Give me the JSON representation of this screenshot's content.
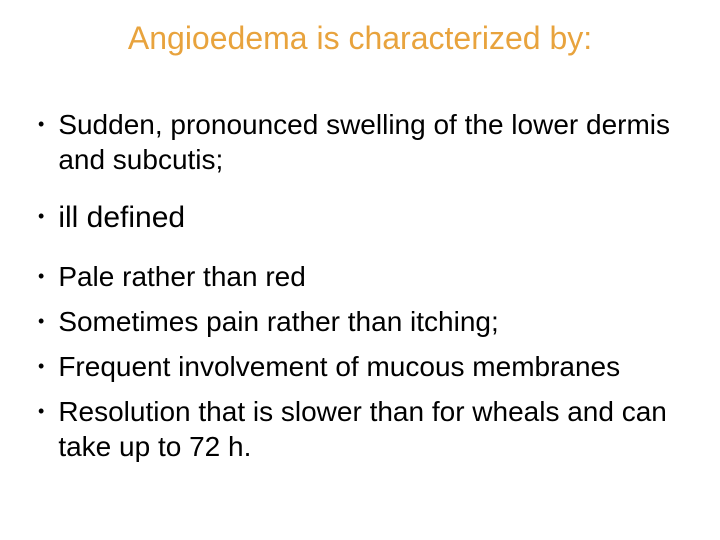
{
  "title": {
    "text": "Angioedema is characterized by:",
    "color": "#e8a33d",
    "fontsize": 32
  },
  "bullets": [
    {
      "text": "Sudden, pronounced swelling of the lower dermis and subcutis;",
      "fontsize": 28,
      "gap_after": true
    },
    {
      "text": "ill defined",
      "fontsize": 30,
      "gap_after": true
    },
    {
      "text": "Pale rather than red",
      "fontsize": 28,
      "gap_after": false
    },
    {
      "text": "Sometimes pain rather than itching;",
      "fontsize": 28,
      "gap_after": false
    },
    {
      "text": "Frequent involvement of mucous membranes",
      "fontsize": 28,
      "gap_after": false
    },
    {
      "text": "Resolution that is slower than for wheals and can take up to 72 h.",
      "fontsize": 28,
      "gap_after": false
    }
  ],
  "colors": {
    "title": "#e8a33d",
    "body_text": "#000000",
    "background": "#ffffff"
  }
}
